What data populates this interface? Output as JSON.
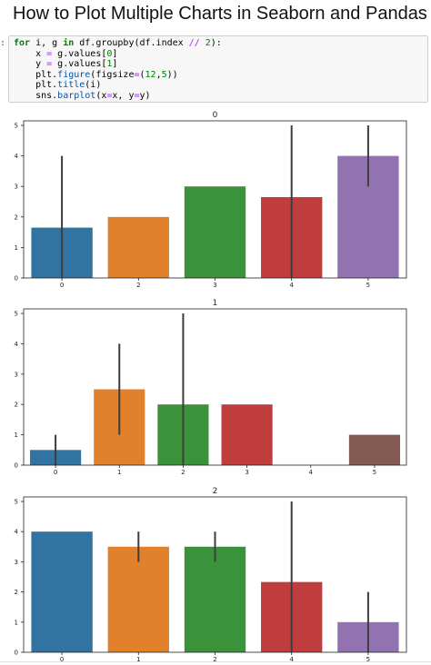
{
  "page": {
    "title": "How to Plot Multiple Charts in Seaborn and Pandas",
    "prompt": ":"
  },
  "code": {
    "lines": [
      [
        {
          "t": "for",
          "c": "kw"
        },
        {
          "t": " i, g "
        },
        {
          "t": "in",
          "c": "kw"
        },
        {
          "t": " df.groupby(df.index "
        },
        {
          "t": "//",
          "c": "op"
        },
        {
          "t": " "
        },
        {
          "t": "2",
          "c": "num"
        },
        {
          "t": "):"
        }
      ],
      [
        {
          "t": "    x "
        },
        {
          "t": "=",
          "c": "op"
        },
        {
          "t": " g.values["
        },
        {
          "t": "0",
          "c": "num"
        },
        {
          "t": "]"
        }
      ],
      [
        {
          "t": "    y "
        },
        {
          "t": "=",
          "c": "op"
        },
        {
          "t": " g.values["
        },
        {
          "t": "1",
          "c": "num"
        },
        {
          "t": "]"
        }
      ],
      [
        {
          "t": "    plt."
        },
        {
          "t": "figure",
          "c": "fn"
        },
        {
          "t": "(figsize"
        },
        {
          "t": "=",
          "c": "op"
        },
        {
          "t": "("
        },
        {
          "t": "12",
          "c": "num"
        },
        {
          "t": ","
        },
        {
          "t": "5",
          "c": "num"
        },
        {
          "t": "))"
        }
      ],
      [
        {
          "t": "    plt."
        },
        {
          "t": "title",
          "c": "fn"
        },
        {
          "t": "(i)"
        }
      ],
      [
        {
          "t": "    sns."
        },
        {
          "t": "barplot",
          "c": "fn"
        },
        {
          "t": "(x"
        },
        {
          "t": "=",
          "c": "op"
        },
        {
          "t": "x, y"
        },
        {
          "t": "=",
          "c": "op"
        },
        {
          "t": "y)"
        }
      ]
    ]
  },
  "chart_data": [
    {
      "type": "bar",
      "title": "0",
      "categories": [
        "0",
        "2",
        "3",
        "4",
        "5"
      ],
      "values": [
        1.65,
        2.0,
        3.0,
        2.65,
        4.0
      ],
      "error_bars": [
        [
          0,
          4
        ],
        null,
        null,
        [
          0,
          5
        ],
        [
          3,
          5
        ]
      ],
      "colors": [
        "#3274a1",
        "#e1812c",
        "#3a923a",
        "#c03d3e",
        "#9372b2"
      ],
      "ylim": [
        0,
        5.15
      ],
      "yticks": [
        "0",
        "1",
        "2",
        "3",
        "4",
        "5"
      ],
      "grid": false
    },
    {
      "type": "bar",
      "title": "1",
      "categories": [
        "0",
        "1",
        "2",
        "3",
        "4",
        "5"
      ],
      "values": [
        0.5,
        2.5,
        2.0,
        2.0,
        0,
        1.0
      ],
      "error_bars": [
        [
          0,
          1
        ],
        [
          1,
          4
        ],
        [
          0,
          5
        ],
        null,
        null,
        null
      ],
      "colors": [
        "#3274a1",
        "#e1812c",
        "#3a923a",
        "#c03d3e",
        "#9372b2",
        "#845b53"
      ],
      "ylim": [
        0,
        5.15
      ],
      "yticks": [
        "0",
        "1",
        "2",
        "3",
        "4",
        "5"
      ],
      "grid": false
    },
    {
      "type": "bar",
      "title": "2",
      "categories": [
        "0",
        "1",
        "2",
        "4",
        "5"
      ],
      "values": [
        4.0,
        3.5,
        3.5,
        2.33,
        1.0
      ],
      "error_bars": [
        null,
        [
          3,
          4
        ],
        [
          3,
          4
        ],
        [
          0,
          5
        ],
        [
          0,
          2
        ]
      ],
      "colors": [
        "#3274a1",
        "#e1812c",
        "#3a923a",
        "#c03d3e",
        "#9372b2"
      ],
      "ylim": [
        0,
        5.15
      ],
      "yticks": [
        "0",
        "1",
        "2",
        "3",
        "4",
        "5"
      ],
      "grid": false
    }
  ]
}
